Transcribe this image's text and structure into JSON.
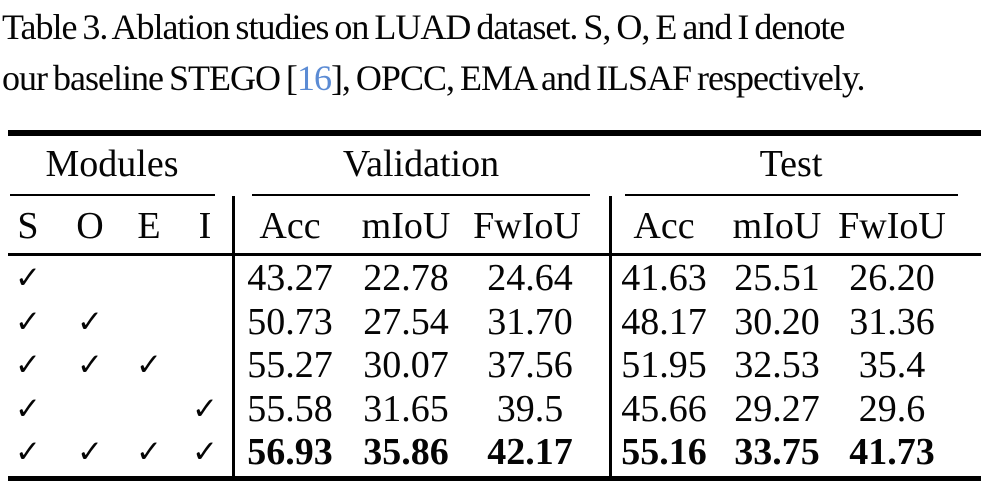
{
  "caption": {
    "line1": "Table 3. Ablation studies on LUAD dataset. S, O, E and I denote",
    "line2_pre": "our baseline STEGO [",
    "cite": "16",
    "line2_post": "], OPCC, EMA and ILSAF respectively.",
    "cite_color": "#5b8bd4"
  },
  "table": {
    "check_glyph": "✓",
    "groups": [
      {
        "label": "Modules",
        "columns": [
          "S",
          "O",
          "E",
          "I"
        ]
      },
      {
        "label": "Validation",
        "columns": [
          "Acc",
          "mIoU",
          "FwIoU"
        ]
      },
      {
        "label": "Test",
        "columns": [
          "Acc",
          "mIoU",
          "FwIoU"
        ]
      }
    ],
    "rows": [
      {
        "modules": {
          "S": true,
          "O": false,
          "E": false,
          "I": false
        },
        "validation": [
          "43.27",
          "22.78",
          "24.64"
        ],
        "test": [
          "41.63",
          "25.51",
          "26.20"
        ],
        "bold": false
      },
      {
        "modules": {
          "S": true,
          "O": true,
          "E": false,
          "I": false
        },
        "validation": [
          "50.73",
          "27.54",
          "31.70"
        ],
        "test": [
          "48.17",
          "30.20",
          "31.36"
        ],
        "bold": false
      },
      {
        "modules": {
          "S": true,
          "O": true,
          "E": true,
          "I": false
        },
        "validation": [
          "55.27",
          "30.07",
          "37.56"
        ],
        "test": [
          "51.95",
          "32.53",
          "35.4"
        ],
        "bold": false
      },
      {
        "modules": {
          "S": true,
          "O": false,
          "E": false,
          "I": true
        },
        "validation": [
          "55.58",
          "31.65",
          "39.5"
        ],
        "test": [
          "45.66",
          "29.27",
          "29.6"
        ],
        "bold": false
      },
      {
        "modules": {
          "S": true,
          "O": true,
          "E": true,
          "I": true
        },
        "validation": [
          "56.93",
          "35.86",
          "42.17"
        ],
        "test": [
          "55.16",
          "33.75",
          "41.73"
        ],
        "bold": true
      }
    ]
  }
}
